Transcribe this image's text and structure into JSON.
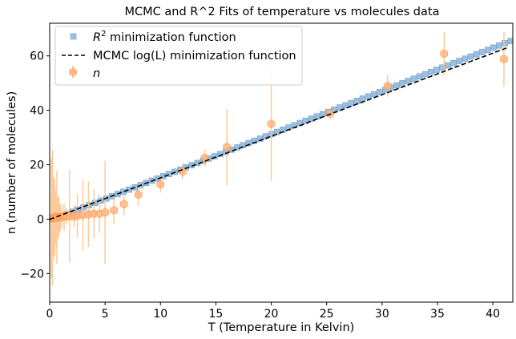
{
  "chart_data": {
    "type": "scatter",
    "title": "MCMC and R^2 Fits of temperature vs molecules data",
    "xlabel": "T (Temperature in Kelvin)",
    "ylabel": "n (number of molecules)",
    "xlim": [
      0,
      41.8
    ],
    "ylim": [
      -30.5,
      72
    ],
    "xticks": [
      0,
      5,
      10,
      15,
      20,
      25,
      30,
      35,
      40
    ],
    "yticks": [
      -20,
      0,
      20,
      40,
      60
    ],
    "grid": false,
    "legend_position": "upper left",
    "series": [
      {
        "name": "R² minimization function",
        "kind": "markers",
        "marker": "square",
        "color": "#89b4d9",
        "fit": {
          "slope": 1.586,
          "intercept": -0.5
        },
        "x_start": 1.0,
        "x_end": 41.6,
        "points": 80
      },
      {
        "name": "MCMC log(L) minimization function",
        "kind": "line",
        "style": "dashed",
        "color": "#000000",
        "fit": {
          "slope": 1.528,
          "intercept": -0.1
        },
        "x_range": [
          0,
          41.3
        ]
      },
      {
        "name": "n",
        "kind": "errorbar",
        "marker": "hexagon",
        "color": "#ff7f0e",
        "x": [
          0.15,
          0.25,
          0.35,
          0.45,
          0.55,
          0.65,
          0.75,
          0.85,
          0.95,
          1.1,
          1.3,
          1.5,
          1.8,
          2.2,
          2.5,
          3.0,
          3.5,
          4.0,
          4.5,
          5.0,
          5.8,
          6.7,
          8.0,
          10.0,
          12.0,
          14.0,
          16.0,
          20.0,
          25.3,
          30.5,
          35.6,
          41.0
        ],
        "y": [
          0.3,
          0.5,
          0.4,
          0.6,
          0.5,
          0.7,
          0.6,
          0.8,
          0.7,
          0.9,
          0.9,
          1.0,
          1.1,
          1.0,
          1.3,
          1.5,
          1.8,
          2.0,
          2.0,
          2.5,
          3.3,
          5.5,
          9.0,
          12.8,
          17.5,
          22.5,
          26.5,
          35.0,
          38.8,
          49.0,
          60.8,
          58.8
        ],
        "yerr": [
          22,
          25,
          15,
          14,
          10,
          17,
          8,
          7,
          5,
          4,
          5,
          3,
          17,
          4,
          8,
          13,
          12,
          9,
          7,
          19,
          5,
          4,
          4,
          3,
          3,
          3,
          14,
          21,
          2,
          4,
          8,
          10
        ]
      }
    ]
  }
}
